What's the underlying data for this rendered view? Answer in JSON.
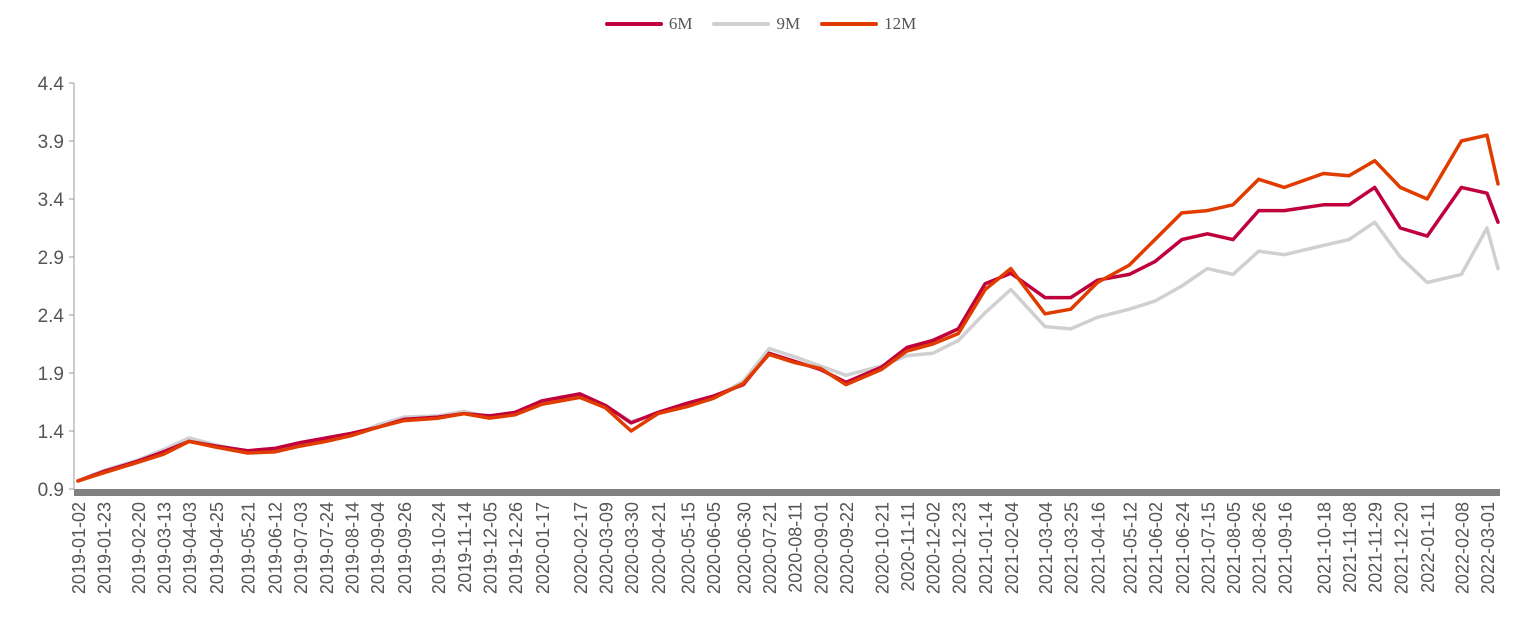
{
  "chart_data": {
    "type": "line",
    "title": "",
    "xlabel": "",
    "ylabel": "",
    "ylim": [
      0.9,
      4.4
    ],
    "yticks": [
      "0.9",
      "1.4",
      "1.9",
      "2.4",
      "2.9",
      "3.4",
      "3.9",
      "4.4"
    ],
    "grid": false,
    "legend_position": "top-center",
    "x_tick_labels": [
      "2019-01-02",
      "2019-01-23",
      "2019-02-20",
      "2019-03-13",
      "2019-04-03",
      "2019-04-25",
      "2019-05-21",
      "2019-06-12",
      "2019-07-03",
      "2019-07-24",
      "2019-08-14",
      "2019-09-04",
      "2019-09-26",
      "2019-10-24",
      "2019-11-14",
      "2019-12-05",
      "2019-12-26",
      "2020-01-17",
      "2020-02-17",
      "2020-03-09",
      "2020-03-30",
      "2020-04-21",
      "2020-05-15",
      "2020-06-05",
      "2020-06-30",
      "2020-07-21",
      "2020-08-11",
      "2020-09-01",
      "2020-09-22",
      "2020-10-21",
      "2020-11-11",
      "2020-12-02",
      "2020-12-23",
      "2021-01-14",
      "2021-02-04",
      "2021-03-04",
      "2021-03-25",
      "2021-04-16",
      "2021-05-12",
      "2021-06-02",
      "2021-06-24",
      "2021-07-15",
      "2021-08-05",
      "2021-08-26",
      "2021-09-16",
      "2021-10-18",
      "2021-11-08",
      "2021-11-29",
      "2021-12-20",
      "2022-01-11",
      "2022-02-08",
      "2022-03-01"
    ],
    "x": [
      "2019-01-02",
      "2019-01-23",
      "2019-02-20",
      "2019-03-13",
      "2019-04-03",
      "2019-04-25",
      "2019-05-21",
      "2019-06-12",
      "2019-07-03",
      "2019-07-24",
      "2019-08-14",
      "2019-09-04",
      "2019-09-26",
      "2019-10-24",
      "2019-11-14",
      "2019-12-05",
      "2019-12-26",
      "2020-01-17",
      "2020-02-17",
      "2020-03-09",
      "2020-03-30",
      "2020-04-21",
      "2020-05-15",
      "2020-06-05",
      "2020-06-30",
      "2020-07-21",
      "2020-08-11",
      "2020-09-01",
      "2020-09-22",
      "2020-10-21",
      "2020-11-11",
      "2020-12-02",
      "2020-12-23",
      "2021-01-14",
      "2021-02-04",
      "2021-03-04",
      "2021-03-25",
      "2021-04-16",
      "2021-05-12",
      "2021-06-02",
      "2021-06-24",
      "2021-07-15",
      "2021-08-05",
      "2021-08-26",
      "2021-09-16",
      "2021-10-18",
      "2021-11-08",
      "2021-11-29",
      "2021-12-20",
      "2022-01-11",
      "2022-02-08",
      "2022-03-01",
      "2022-03-10"
    ],
    "series": [
      {
        "name": "6M",
        "color": "#c0003c",
        "values": [
          0.97,
          1.05,
          1.14,
          1.22,
          1.31,
          1.27,
          1.23,
          1.25,
          1.3,
          1.34,
          1.38,
          1.43,
          1.5,
          1.52,
          1.55,
          1.53,
          1.56,
          1.66,
          1.72,
          1.62,
          1.47,
          1.56,
          1.64,
          1.7,
          1.8,
          2.07,
          2.0,
          1.93,
          1.82,
          1.95,
          2.12,
          2.18,
          2.28,
          2.67,
          2.76,
          2.55,
          2.55,
          2.7,
          2.75,
          2.86,
          3.05,
          3.1,
          3.05,
          3.3,
          3.3,
          3.35,
          3.35,
          3.5,
          3.15,
          3.08,
          3.5,
          3.45,
          3.2
        ]
      },
      {
        "name": "9M",
        "color": "#d0d0d0",
        "values": [
          0.97,
          1.06,
          1.15,
          1.24,
          1.34,
          1.28,
          1.22,
          1.23,
          1.28,
          1.32,
          1.36,
          1.45,
          1.52,
          1.53,
          1.57,
          1.52,
          1.55,
          1.64,
          1.69,
          1.62,
          1.48,
          1.55,
          1.62,
          1.68,
          1.83,
          2.11,
          2.04,
          1.96,
          1.88,
          1.96,
          2.05,
          2.07,
          2.18,
          2.42,
          2.62,
          2.3,
          2.28,
          2.38,
          2.45,
          2.52,
          2.65,
          2.8,
          2.75,
          2.95,
          2.92,
          3.0,
          3.05,
          3.2,
          2.9,
          2.68,
          2.75,
          3.15,
          2.8
        ]
      },
      {
        "name": "12M",
        "color": "#e03c00",
        "values": [
          0.97,
          1.04,
          1.13,
          1.2,
          1.31,
          1.26,
          1.21,
          1.22,
          1.27,
          1.31,
          1.36,
          1.43,
          1.49,
          1.51,
          1.55,
          1.51,
          1.54,
          1.63,
          1.69,
          1.6,
          1.4,
          1.55,
          1.61,
          1.68,
          1.81,
          2.06,
          1.99,
          1.94,
          1.8,
          1.93,
          2.09,
          2.15,
          2.24,
          2.62,
          2.8,
          2.41,
          2.45,
          2.68,
          2.83,
          3.05,
          3.28,
          3.3,
          3.35,
          3.57,
          3.5,
          3.62,
          3.6,
          3.73,
          3.5,
          3.4,
          3.9,
          3.95,
          3.53
        ]
      }
    ]
  }
}
